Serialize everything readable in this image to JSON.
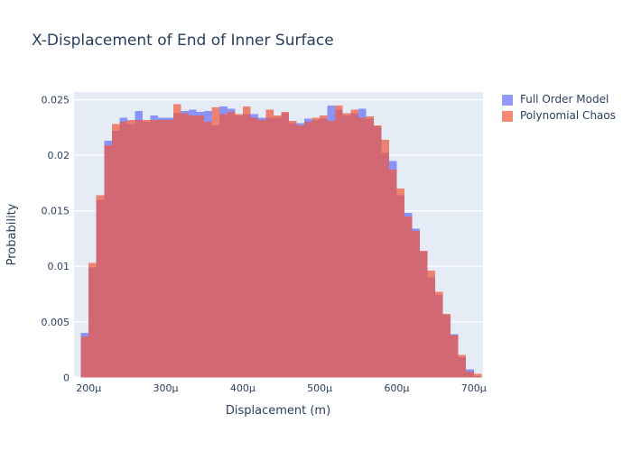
{
  "chart_data": {
    "type": "bar",
    "subtype": "overlaid-histogram",
    "title": "X-Displacement of End of Inner Surface",
    "xlabel": "Displacement (m)",
    "ylabel": "Probability",
    "barmode": "overlay",
    "grid": "horizontal-only",
    "legend_position": "top-right",
    "plot_bg": "#E5ECF6",
    "paper_bg": "#FFFFFF",
    "grid_color": "#FFFFFF",
    "text_color": "#2A3F5F",
    "xlim_microns": [
      181,
      712
    ],
    "ylim": [
      0,
      0.0257
    ],
    "bin_width_microns": 10,
    "bin_start_microns": [
      190,
      200,
      210,
      220,
      230,
      240,
      250,
      260,
      270,
      280,
      290,
      300,
      310,
      320,
      330,
      340,
      350,
      360,
      370,
      380,
      390,
      400,
      410,
      420,
      430,
      440,
      450,
      460,
      470,
      480,
      490,
      500,
      510,
      520,
      530,
      540,
      550,
      560,
      570,
      580,
      590,
      600,
      610,
      620,
      630,
      640,
      650,
      660,
      670,
      680,
      690,
      700
    ],
    "series": [
      {
        "name": "Full Order Model",
        "color": "#636EFA",
        "opacity": 0.7,
        "values": [
          0.004,
          0.0099,
          0.016,
          0.0213,
          0.0222,
          0.0234,
          0.0228,
          0.024,
          0.023,
          0.0236,
          0.0234,
          0.0234,
          0.0238,
          0.024,
          0.0241,
          0.0239,
          0.024,
          0.0227,
          0.0244,
          0.0242,
          0.0236,
          0.0237,
          0.0237,
          0.0234,
          0.0234,
          0.0234,
          0.0238,
          0.0229,
          0.0229,
          0.0233,
          0.0232,
          0.0233,
          0.0245,
          0.0241,
          0.0236,
          0.0238,
          0.0242,
          0.0233,
          0.0226,
          0.0202,
          0.0195,
          0.0164,
          0.0148,
          0.0134,
          0.0113,
          0.009,
          0.0074,
          0.0056,
          0.0039,
          0.0018,
          0.0007,
          0.0001
        ]
      },
      {
        "name": "Polynomial Chaos",
        "color": "#EF553B",
        "opacity": 0.7,
        "values": [
          0.0037,
          0.0103,
          0.0164,
          0.0209,
          0.0228,
          0.023,
          0.0232,
          0.0232,
          0.0232,
          0.0232,
          0.0232,
          0.0232,
          0.0246,
          0.0238,
          0.0236,
          0.0236,
          0.023,
          0.0243,
          0.0237,
          0.0239,
          0.0237,
          0.0244,
          0.0234,
          0.0232,
          0.0241,
          0.0236,
          0.0239,
          0.0231,
          0.0227,
          0.023,
          0.0234,
          0.0236,
          0.0231,
          0.0245,
          0.0238,
          0.0241,
          0.0234,
          0.0235,
          0.0227,
          0.0214,
          0.0187,
          0.017,
          0.0145,
          0.0132,
          0.0114,
          0.0096,
          0.0077,
          0.0057,
          0.0038,
          0.002,
          0.0005,
          0.0003
        ]
      }
    ],
    "xticks": [
      {
        "value": 200,
        "label": "200µ"
      },
      {
        "value": 300,
        "label": "300µ"
      },
      {
        "value": 400,
        "label": "400µ"
      },
      {
        "value": 500,
        "label": "500µ"
      },
      {
        "value": 600,
        "label": "600µ"
      },
      {
        "value": 700,
        "label": "700µ"
      }
    ],
    "yticks": [
      {
        "value": 0,
        "label": "0"
      },
      {
        "value": 0.005,
        "label": "0.005"
      },
      {
        "value": 0.01,
        "label": "0.01"
      },
      {
        "value": 0.015,
        "label": "0.015"
      },
      {
        "value": 0.02,
        "label": "0.02"
      },
      {
        "value": 0.025,
        "label": "0.025"
      }
    ]
  }
}
